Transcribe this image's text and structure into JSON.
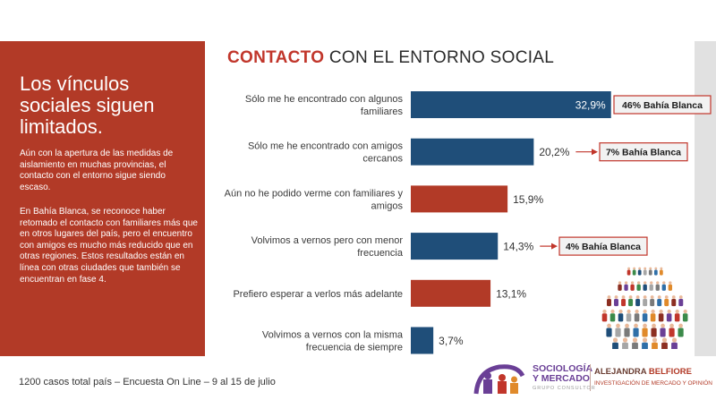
{
  "left": {
    "title": "Los vínculos sociales siguen limitados.",
    "p1": "Aún con la apertura de las medidas de aislamiento en muchas provincias, el contacto con el entorno sigue siendo escaso.",
    "p2": "En Bahía Blanca, se reconoce haber retomado el contacto con familiares más que en otros lugares del país, pero el encuentro con amigos es mucho más reducido que en otras regiones. Estos resultados están en línea con otras ciudades que también se encuentran en fase 4."
  },
  "colors": {
    "blue": "#1f4e79",
    "red": "#b23a27",
    "panel": "#b23a27"
  },
  "chart_data": {
    "type": "bar",
    "orientation": "horizontal",
    "title_bold": "CONTACTO",
    "title_rest": "CON EL ENTORNO SOCIAL",
    "categories": [
      [
        "Sólo me he encontrado con algunos",
        "familiares"
      ],
      [
        "Sólo me he encontrado con amigos",
        "cercanos"
      ],
      [
        "Aún no he podido verme con familiares y",
        "amigos"
      ],
      [
        "Volvimos a vernos pero con menor",
        "frecuencia"
      ],
      [
        "Prefiero esperar a verlos más adelante"
      ],
      [
        "Volvimos a vernos con la misma",
        "frecuencia de siempre"
      ]
    ],
    "values": [
      32.9,
      20.2,
      15.9,
      14.3,
      13.1,
      3.7
    ],
    "value_labels": [
      "32,9%",
      "20,2%",
      "15,9%",
      "14,3%",
      "13,1%",
      "3,7%"
    ],
    "bar_colors": [
      "blue",
      "blue",
      "red",
      "blue",
      "red",
      "blue"
    ],
    "callouts": [
      {
        "bar": 0,
        "text": "46% Bahía Blanca"
      },
      {
        "bar": 1,
        "text": "7% Bahía Blanca"
      },
      {
        "bar": 3,
        "text": "4% Bahía Blanca"
      }
    ]
  },
  "footer": "1200 casos total país – Encuesta On Line – 9 al 15 de julio",
  "brand": {
    "name_line1": "SOCIOLOGÍA",
    "name_line2": "Y MERCADO",
    "sub": "GRUPO CONSULTOR",
    "person_first": "ALEJANDRA",
    "person_last": "BELFIORE",
    "person_sub": "INVESTIGACIÓN DE MERCADO Y OPINIÓN"
  }
}
